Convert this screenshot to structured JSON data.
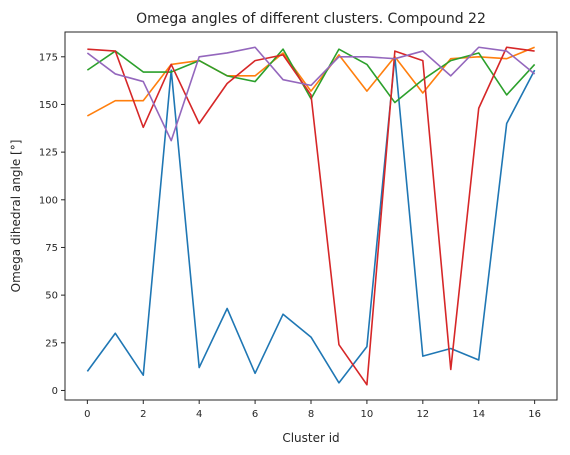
{
  "chart_data": {
    "type": "line",
    "title": "Omega angles of different clusters. Compound 22",
    "xlabel": "Cluster id",
    "ylabel": "Omega dihedral angle [°]",
    "xlim": [
      -0.8,
      16.8
    ],
    "ylim": [
      -5,
      188
    ],
    "xticks": [
      0,
      2,
      4,
      6,
      8,
      10,
      12,
      14,
      16
    ],
    "yticks": [
      0,
      25,
      50,
      75,
      100,
      125,
      150,
      175
    ],
    "grid": false,
    "x": [
      0,
      1,
      2,
      3,
      4,
      5,
      6,
      7,
      8,
      9,
      10,
      11,
      12,
      13,
      14,
      15,
      16
    ],
    "series": [
      {
        "color": "#1f77b4",
        "values": [
          10,
          30,
          8,
          168,
          12,
          43,
          9,
          40,
          28,
          4,
          23,
          175,
          18,
          22,
          16,
          140,
          168
        ]
      },
      {
        "color": "#ff7f0e",
        "values": [
          144,
          152,
          152,
          171,
          173,
          165,
          165,
          177,
          157,
          176,
          157,
          175,
          156,
          174,
          175,
          174,
          180
        ]
      },
      {
        "color": "#2ca02c",
        "values": [
          168,
          178,
          167,
          167,
          173,
          165,
          162,
          179,
          153,
          179,
          171,
          151,
          163,
          173,
          177,
          155,
          171
        ]
      },
      {
        "color": "#d62728",
        "values": [
          179,
          178,
          138,
          171,
          140,
          161,
          173,
          176,
          155,
          24,
          3,
          178,
          173,
          11,
          148,
          180,
          178
        ]
      },
      {
        "color": "#9467bd",
        "values": [
          177,
          166,
          162,
          131,
          175,
          177,
          180,
          163,
          160,
          175,
          175,
          174,
          178,
          165,
          180,
          178,
          166
        ]
      }
    ]
  }
}
